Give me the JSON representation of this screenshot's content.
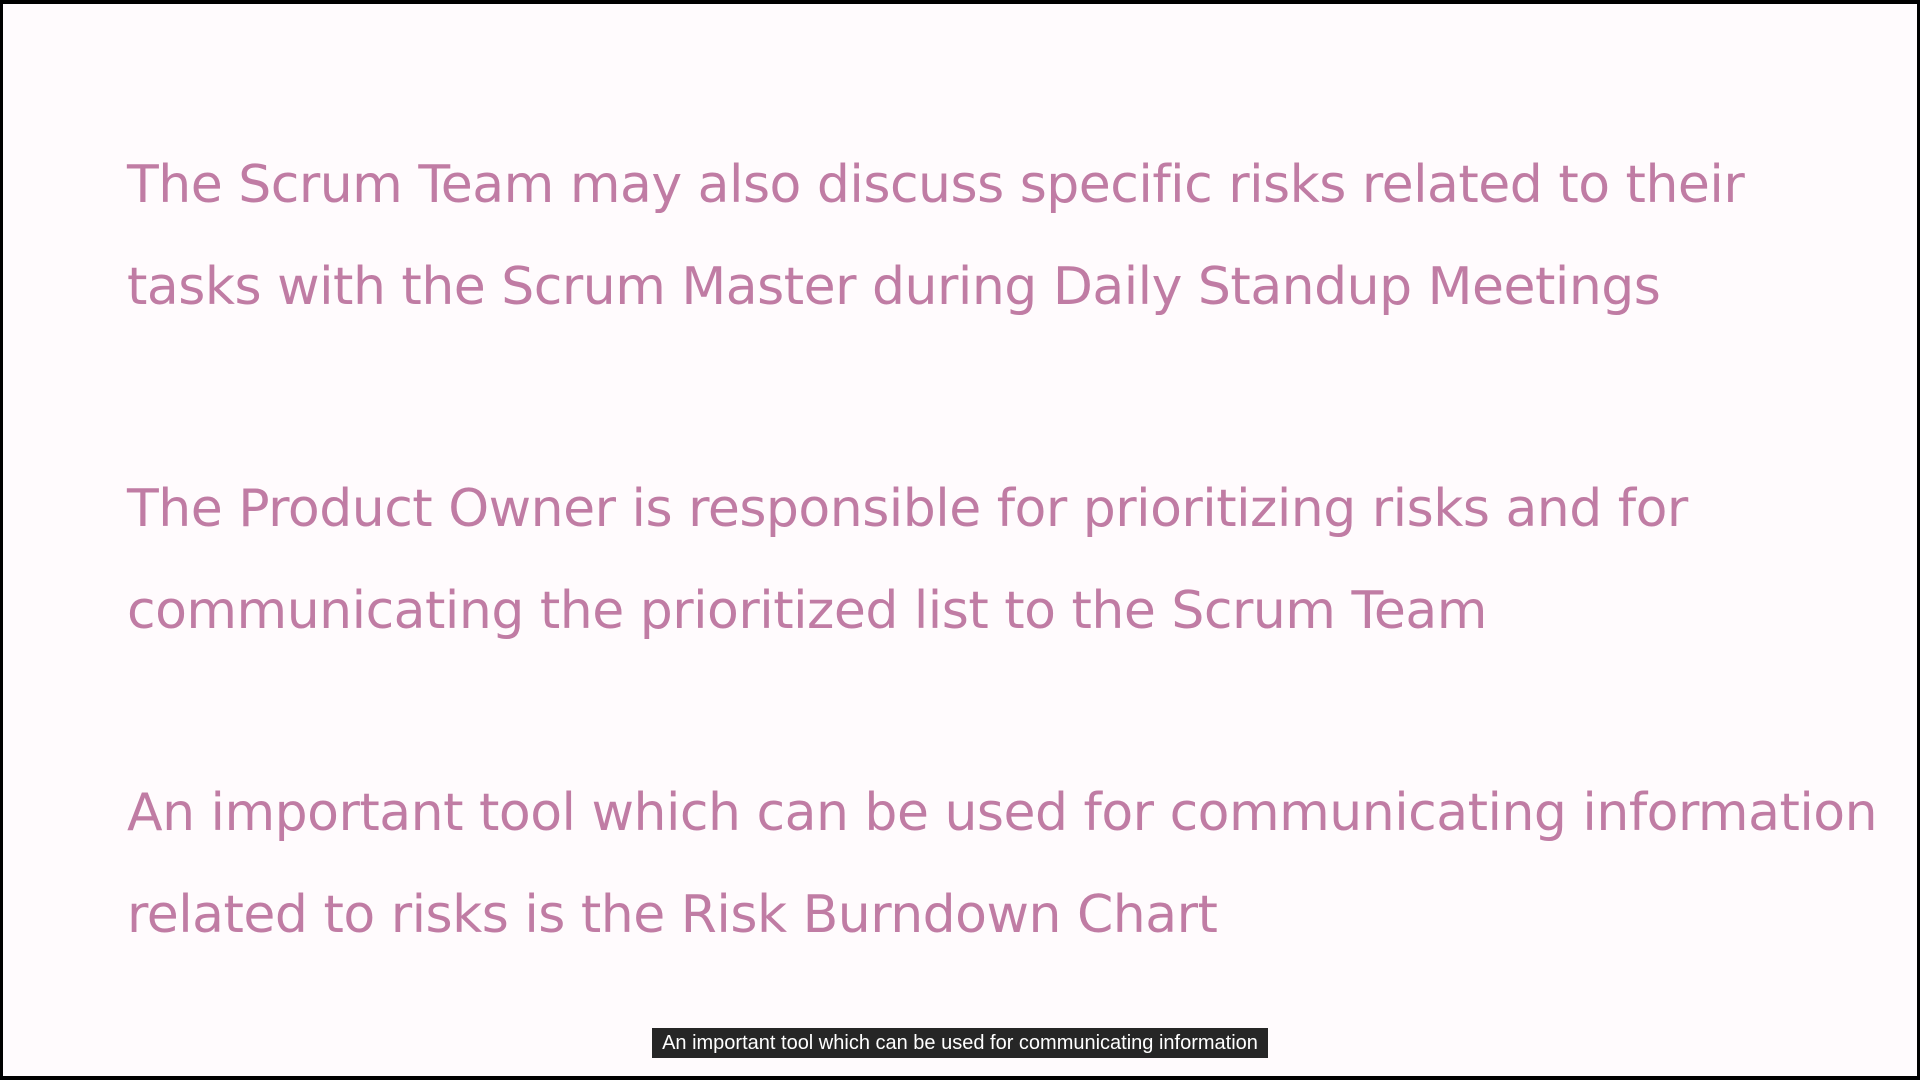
{
  "slide": {
    "paragraphs": [
      {
        "lines": [
          "The Scrum Team may also discuss specific risks related to their",
          "tasks with the Scrum Master during Daily Standup Meetings"
        ]
      },
      {
        "lines": [
          "The Product Owner is responsible for prioritizing risks and for",
          "communicating the prioritized list to the Scrum Team"
        ]
      },
      {
        "lines": [
          "An important tool which can be used for communicating information",
          "related to risks is the Risk Burndown Chart"
        ]
      }
    ],
    "text_color": "#c07ca4",
    "background_color": "#fffbfd"
  },
  "caption": {
    "text": "An important tool which can be used for communicating information"
  }
}
